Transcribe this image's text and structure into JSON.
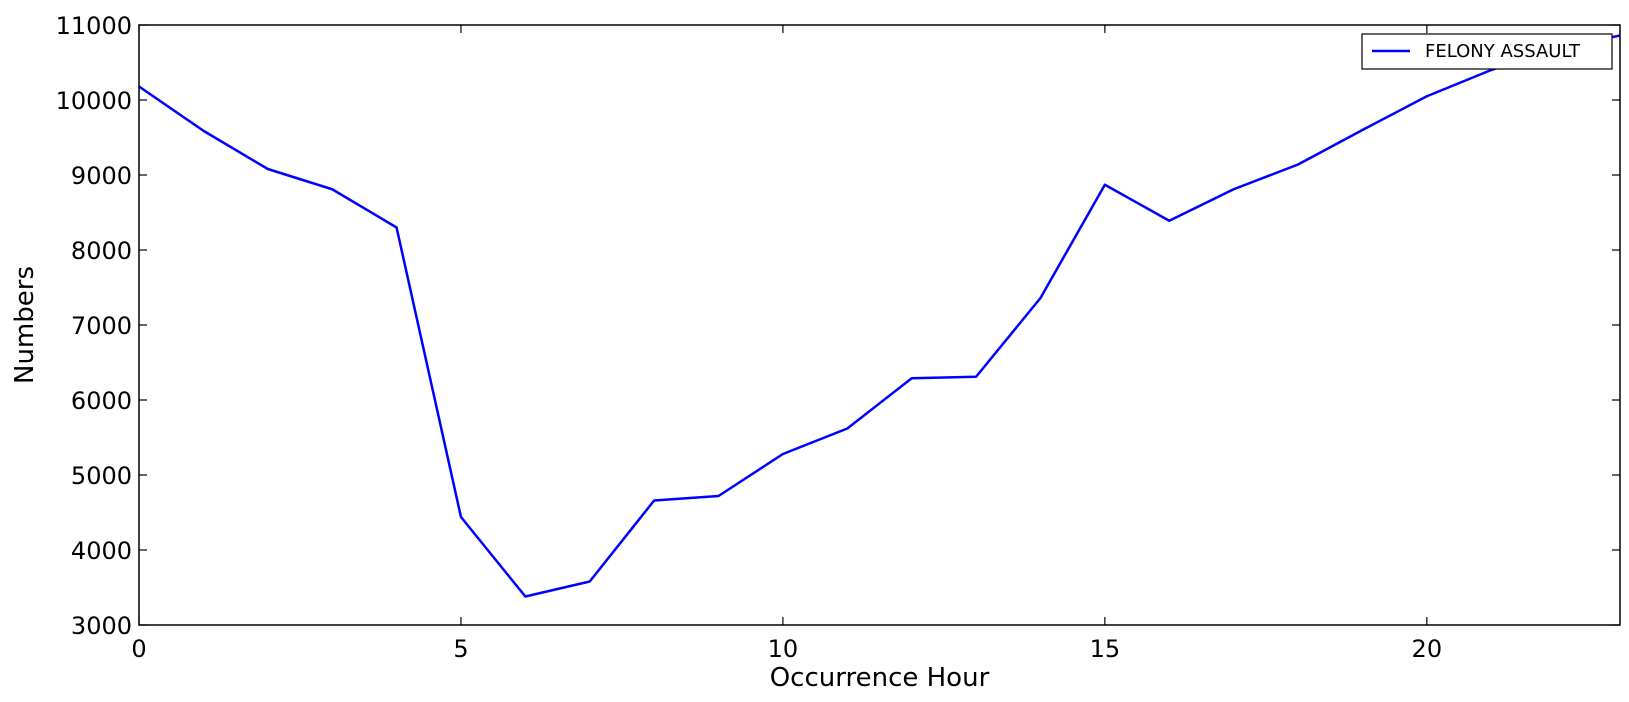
{
  "chart_data": {
    "type": "line",
    "title": "",
    "xlabel": "Occurrence Hour",
    "ylabel": "Numbers",
    "xlim": [
      0,
      23
    ],
    "ylim": [
      3000,
      11000
    ],
    "xticks": [
      0,
      5,
      10,
      15,
      20
    ],
    "yticks": [
      3000,
      4000,
      5000,
      6000,
      7000,
      8000,
      9000,
      10000,
      11000
    ],
    "grid": false,
    "legend_position": "top-right",
    "x": [
      0,
      1,
      2,
      3,
      4,
      5,
      6,
      7,
      8,
      9,
      10,
      11,
      12,
      13,
      14,
      15,
      16,
      17,
      18,
      19,
      20,
      21,
      22,
      23
    ],
    "series": [
      {
        "name": "FELONY ASSAULT",
        "color": "#0000ff",
        "values": [
          10180,
          9590,
          9080,
          8810,
          8300,
          4440,
          3380,
          3580,
          4660,
          4720,
          5280,
          5620,
          6290,
          6310,
          7360,
          8870,
          8390,
          8810,
          9140,
          9600,
          10050,
          10400,
          10680,
          10860
        ]
      }
    ]
  }
}
